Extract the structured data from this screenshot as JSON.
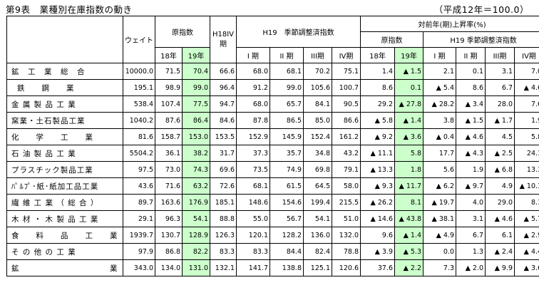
{
  "title": "第9表　業種別在庫指数の動き",
  "base_note": "（平成12年＝100.0）",
  "headers": {
    "weight": "ウェイト",
    "orig_index": "原指数",
    "h18iv": "H18IV期",
    "h19_sa": "H19　季節調整済指数",
    "yoy": "対前年(期)上昇率(%)",
    "yoy_orig": "原指数",
    "yoy_sa": "H19 季節調整済指数",
    "y18": "18年",
    "y19": "19年",
    "q1": "I 期",
    "q2": "II 期",
    "q3": "III期",
    "q4": "IV期"
  },
  "rows": [
    {
      "name": "鉱　工　業　総　合",
      "indent": false,
      "cells": [
        "10000.0",
        "71.5",
        "70.4",
        "66.6",
        "68.0",
        "68.1",
        "70.2",
        "75.1",
        "1.4",
        "▲ 1.5",
        "2.1",
        "0.1",
        "3.1",
        "7.0"
      ]
    },
    {
      "name": "鉄　　鋼　　業",
      "indent": true,
      "cells": [
        "195.1",
        "98.9",
        "99.0",
        "96.4",
        "91.2",
        "99.0",
        "105.6",
        "100.7",
        "8.6",
        "0.1",
        "▲ 5.4",
        "8.6",
        "6.7",
        "▲ 4.6"
      ]
    },
    {
      "name": "金 属 製 品 工 業",
      "indent": false,
      "cells": [
        "538.4",
        "107.4",
        "77.5",
        "94.7",
        "68.0",
        "65.7",
        "84.1",
        "90.5",
        "29.2",
        "▲ 27.8",
        "▲ 28.2",
        "▲ 3.4",
        "28.0",
        "7.6"
      ]
    },
    {
      "name": "窯業・土石製品工業",
      "indent": false,
      "cells": [
        "1040.2",
        "87.6",
        "86.4",
        "84.6",
        "87.8",
        "86.5",
        "85.0",
        "86.6",
        "▲ 5.8",
        "▲ 1.4",
        "3.8",
        "▲ 1.5",
        "▲ 1.7",
        "1.9"
      ]
    },
    {
      "name": "化　　学　　工　　業",
      "indent": false,
      "cells": [
        "81.6",
        "158.7",
        "153.0",
        "153.5",
        "152.9",
        "145.9",
        "152.4",
        "161.2",
        "▲ 9.2",
        "▲ 3.6",
        "▲ 0.4",
        "▲ 4.6",
        "4.5",
        "5.8"
      ]
    },
    {
      "name": "石 油 製 品 工 業",
      "indent": false,
      "cells": [
        "5504.2",
        "36.1",
        "38.2",
        "31.7",
        "37.3",
        "35.7",
        "34.8",
        "43.2",
        "▲ 11.1",
        "5.8",
        "17.7",
        "▲ 4.3",
        "▲ 2.5",
        "24.1"
      ]
    },
    {
      "name": "プラスチック製品工業",
      "indent": false,
      "cells": [
        "97.5",
        "73.0",
        "74.3",
        "69.6",
        "73.5",
        "74.9",
        "69.8",
        "79.1",
        "▲ 13.3",
        "1.8",
        "5.6",
        "1.9",
        "▲ 6.8",
        "13.3"
      ]
    },
    {
      "name": "ﾊﾟﾙﾌﾟ･紙･紙加工品工業",
      "indent": false,
      "cells": [
        "43.6",
        "71.6",
        "63.2",
        "72.6",
        "68.1",
        "61.5",
        "64.5",
        "58.0",
        "▲ 9.3",
        "▲ 11.7",
        "▲ 6.2",
        "▲ 9.7",
        "4.9",
        "▲ 10.1"
      ]
    },
    {
      "name": "繊 維 工 業 （ 総 合 ）",
      "indent": false,
      "cells": [
        "89.7",
        "163.6",
        "176.9",
        "185.1",
        "148.6",
        "154.6",
        "199.4",
        "215.5",
        "▲ 26.2",
        "8.1",
        "▲ 19.7",
        "4.0",
        "29.0",
        "8.1"
      ]
    },
    {
      "name": "木 材 ・ 木 製 品 工 業",
      "indent": false,
      "cells": [
        "29.1",
        "96.3",
        "54.1",
        "88.8",
        "55.0",
        "56.7",
        "54.1",
        "51.0",
        "▲ 14.6",
        "▲ 43.8",
        "▲ 38.1",
        "3.1",
        "▲ 4.6",
        "▲ 5.7"
      ]
    },
    {
      "name": "食　　料　　品　　工　　業",
      "indent": false,
      "cells": [
        "1939.7",
        "130.7",
        "128.9",
        "126.3",
        "120.1",
        "128.2",
        "136.0",
        "132.0",
        "9.6",
        "▲ 1.4",
        "▲ 4.9",
        "6.7",
        "6.1",
        "▲ 2.9"
      ]
    },
    {
      "name": "そ の 他 の 工 業",
      "indent": false,
      "cells": [
        "97.9",
        "86.8",
        "82.2",
        "83.3",
        "83.3",
        "84.4",
        "82.4",
        "78.8",
        "▲ 3.9",
        "▲ 5.3",
        "0.0",
        "1.3",
        "▲ 2.4",
        "▲ 4.4"
      ]
    },
    {
      "name": "鉱　　　　　　　　　　　業",
      "indent": false,
      "cells": [
        "343.0",
        "134.0",
        "131.0",
        "132.1",
        "141.7",
        "138.8",
        "125.1",
        "120.6",
        "37.6",
        "▲ 2.2",
        "7.3",
        "▲ 2.0",
        "▲ 9.9",
        "▲ 3.6"
      ]
    }
  ]
}
